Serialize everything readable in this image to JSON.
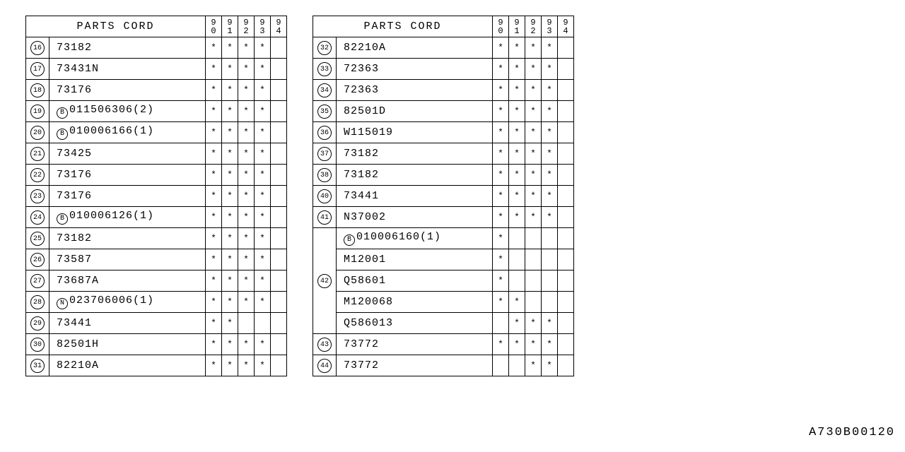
{
  "header_title": "PARTS CORD",
  "year_cols": [
    "90",
    "91",
    "92",
    "93",
    "94"
  ],
  "footer_id": "A730B00120",
  "mark": "*",
  "leftTable": [
    {
      "idx": "16",
      "prefix": "",
      "code": "73182",
      "marks": [
        1,
        1,
        1,
        1,
        0
      ]
    },
    {
      "idx": "17",
      "prefix": "",
      "code": "73431N",
      "marks": [
        1,
        1,
        1,
        1,
        0
      ]
    },
    {
      "idx": "18",
      "prefix": "",
      "code": "73176",
      "marks": [
        1,
        1,
        1,
        1,
        0
      ]
    },
    {
      "idx": "19",
      "prefix": "B",
      "code": "011506306(2)",
      "marks": [
        1,
        1,
        1,
        1,
        0
      ]
    },
    {
      "idx": "20",
      "prefix": "B",
      "code": "010006166(1)",
      "marks": [
        1,
        1,
        1,
        1,
        0
      ]
    },
    {
      "idx": "21",
      "prefix": "",
      "code": "73425",
      "marks": [
        1,
        1,
        1,
        1,
        0
      ]
    },
    {
      "idx": "22",
      "prefix": "",
      "code": "73176",
      "marks": [
        1,
        1,
        1,
        1,
        0
      ]
    },
    {
      "idx": "23",
      "prefix": "",
      "code": "73176",
      "marks": [
        1,
        1,
        1,
        1,
        0
      ]
    },
    {
      "idx": "24",
      "prefix": "B",
      "code": "010006126(1)",
      "marks": [
        1,
        1,
        1,
        1,
        0
      ]
    },
    {
      "idx": "25",
      "prefix": "",
      "code": "73182",
      "marks": [
        1,
        1,
        1,
        1,
        0
      ]
    },
    {
      "idx": "26",
      "prefix": "",
      "code": "73587",
      "marks": [
        1,
        1,
        1,
        1,
        0
      ]
    },
    {
      "idx": "27",
      "prefix": "",
      "code": "73687A",
      "marks": [
        1,
        1,
        1,
        1,
        0
      ]
    },
    {
      "idx": "28",
      "prefix": "N",
      "code": "023706006(1)",
      "marks": [
        1,
        1,
        1,
        1,
        0
      ]
    },
    {
      "idx": "29",
      "prefix": "",
      "code": "73441",
      "marks": [
        1,
        1,
        0,
        0,
        0
      ]
    },
    {
      "idx": "30",
      "prefix": "",
      "code": "82501H",
      "marks": [
        1,
        1,
        1,
        1,
        0
      ]
    },
    {
      "idx": "31",
      "prefix": "",
      "code": "82210A",
      "marks": [
        1,
        1,
        1,
        1,
        0
      ]
    }
  ],
  "rightTable": [
    {
      "idx": "32",
      "span": 1,
      "prefix": "",
      "code": "82210A",
      "marks": [
        1,
        1,
        1,
        1,
        0
      ]
    },
    {
      "idx": "33",
      "span": 1,
      "prefix": "",
      "code": "72363",
      "marks": [
        1,
        1,
        1,
        1,
        0
      ]
    },
    {
      "idx": "34",
      "span": 1,
      "prefix": "",
      "code": "72363",
      "marks": [
        1,
        1,
        1,
        1,
        0
      ]
    },
    {
      "idx": "35",
      "span": 1,
      "prefix": "",
      "code": "82501D",
      "marks": [
        1,
        1,
        1,
        1,
        0
      ]
    },
    {
      "idx": "36",
      "span": 1,
      "prefix": "",
      "code": "W115019",
      "marks": [
        1,
        1,
        1,
        1,
        0
      ]
    },
    {
      "idx": "37",
      "span": 1,
      "prefix": "",
      "code": "73182",
      "marks": [
        1,
        1,
        1,
        1,
        0
      ]
    },
    {
      "idx": "38",
      "span": 1,
      "prefix": "",
      "code": "73182",
      "marks": [
        1,
        1,
        1,
        1,
        0
      ]
    },
    {
      "idx": "40",
      "span": 1,
      "prefix": "",
      "code": "73441",
      "marks": [
        1,
        1,
        1,
        1,
        0
      ]
    },
    {
      "idx": "41",
      "span": 1,
      "prefix": "",
      "code": "N37002",
      "marks": [
        1,
        1,
        1,
        1,
        0
      ]
    },
    {
      "idx": "42",
      "span": 5,
      "rows": [
        {
          "prefix": "B",
          "code": "010006160(1)",
          "marks": [
            1,
            0,
            0,
            0,
            0
          ]
        },
        {
          "prefix": "",
          "code": "M12001",
          "marks": [
            1,
            0,
            0,
            0,
            0
          ]
        },
        {
          "prefix": "",
          "code": "Q58601",
          "marks": [
            1,
            0,
            0,
            0,
            0
          ]
        },
        {
          "prefix": "",
          "code": "M120068",
          "marks": [
            1,
            1,
            0,
            0,
            0
          ]
        },
        {
          "prefix": "",
          "code": "Q586013",
          "marks": [
            0,
            1,
            1,
            1,
            0
          ]
        }
      ]
    },
    {
      "idx": "43",
      "span": 1,
      "prefix": "",
      "code": "73772",
      "marks": [
        1,
        1,
        1,
        1,
        0
      ]
    },
    {
      "idx": "44",
      "span": 1,
      "prefix": "",
      "code": "73772",
      "marks": [
        0,
        0,
        1,
        1,
        0
      ]
    }
  ]
}
